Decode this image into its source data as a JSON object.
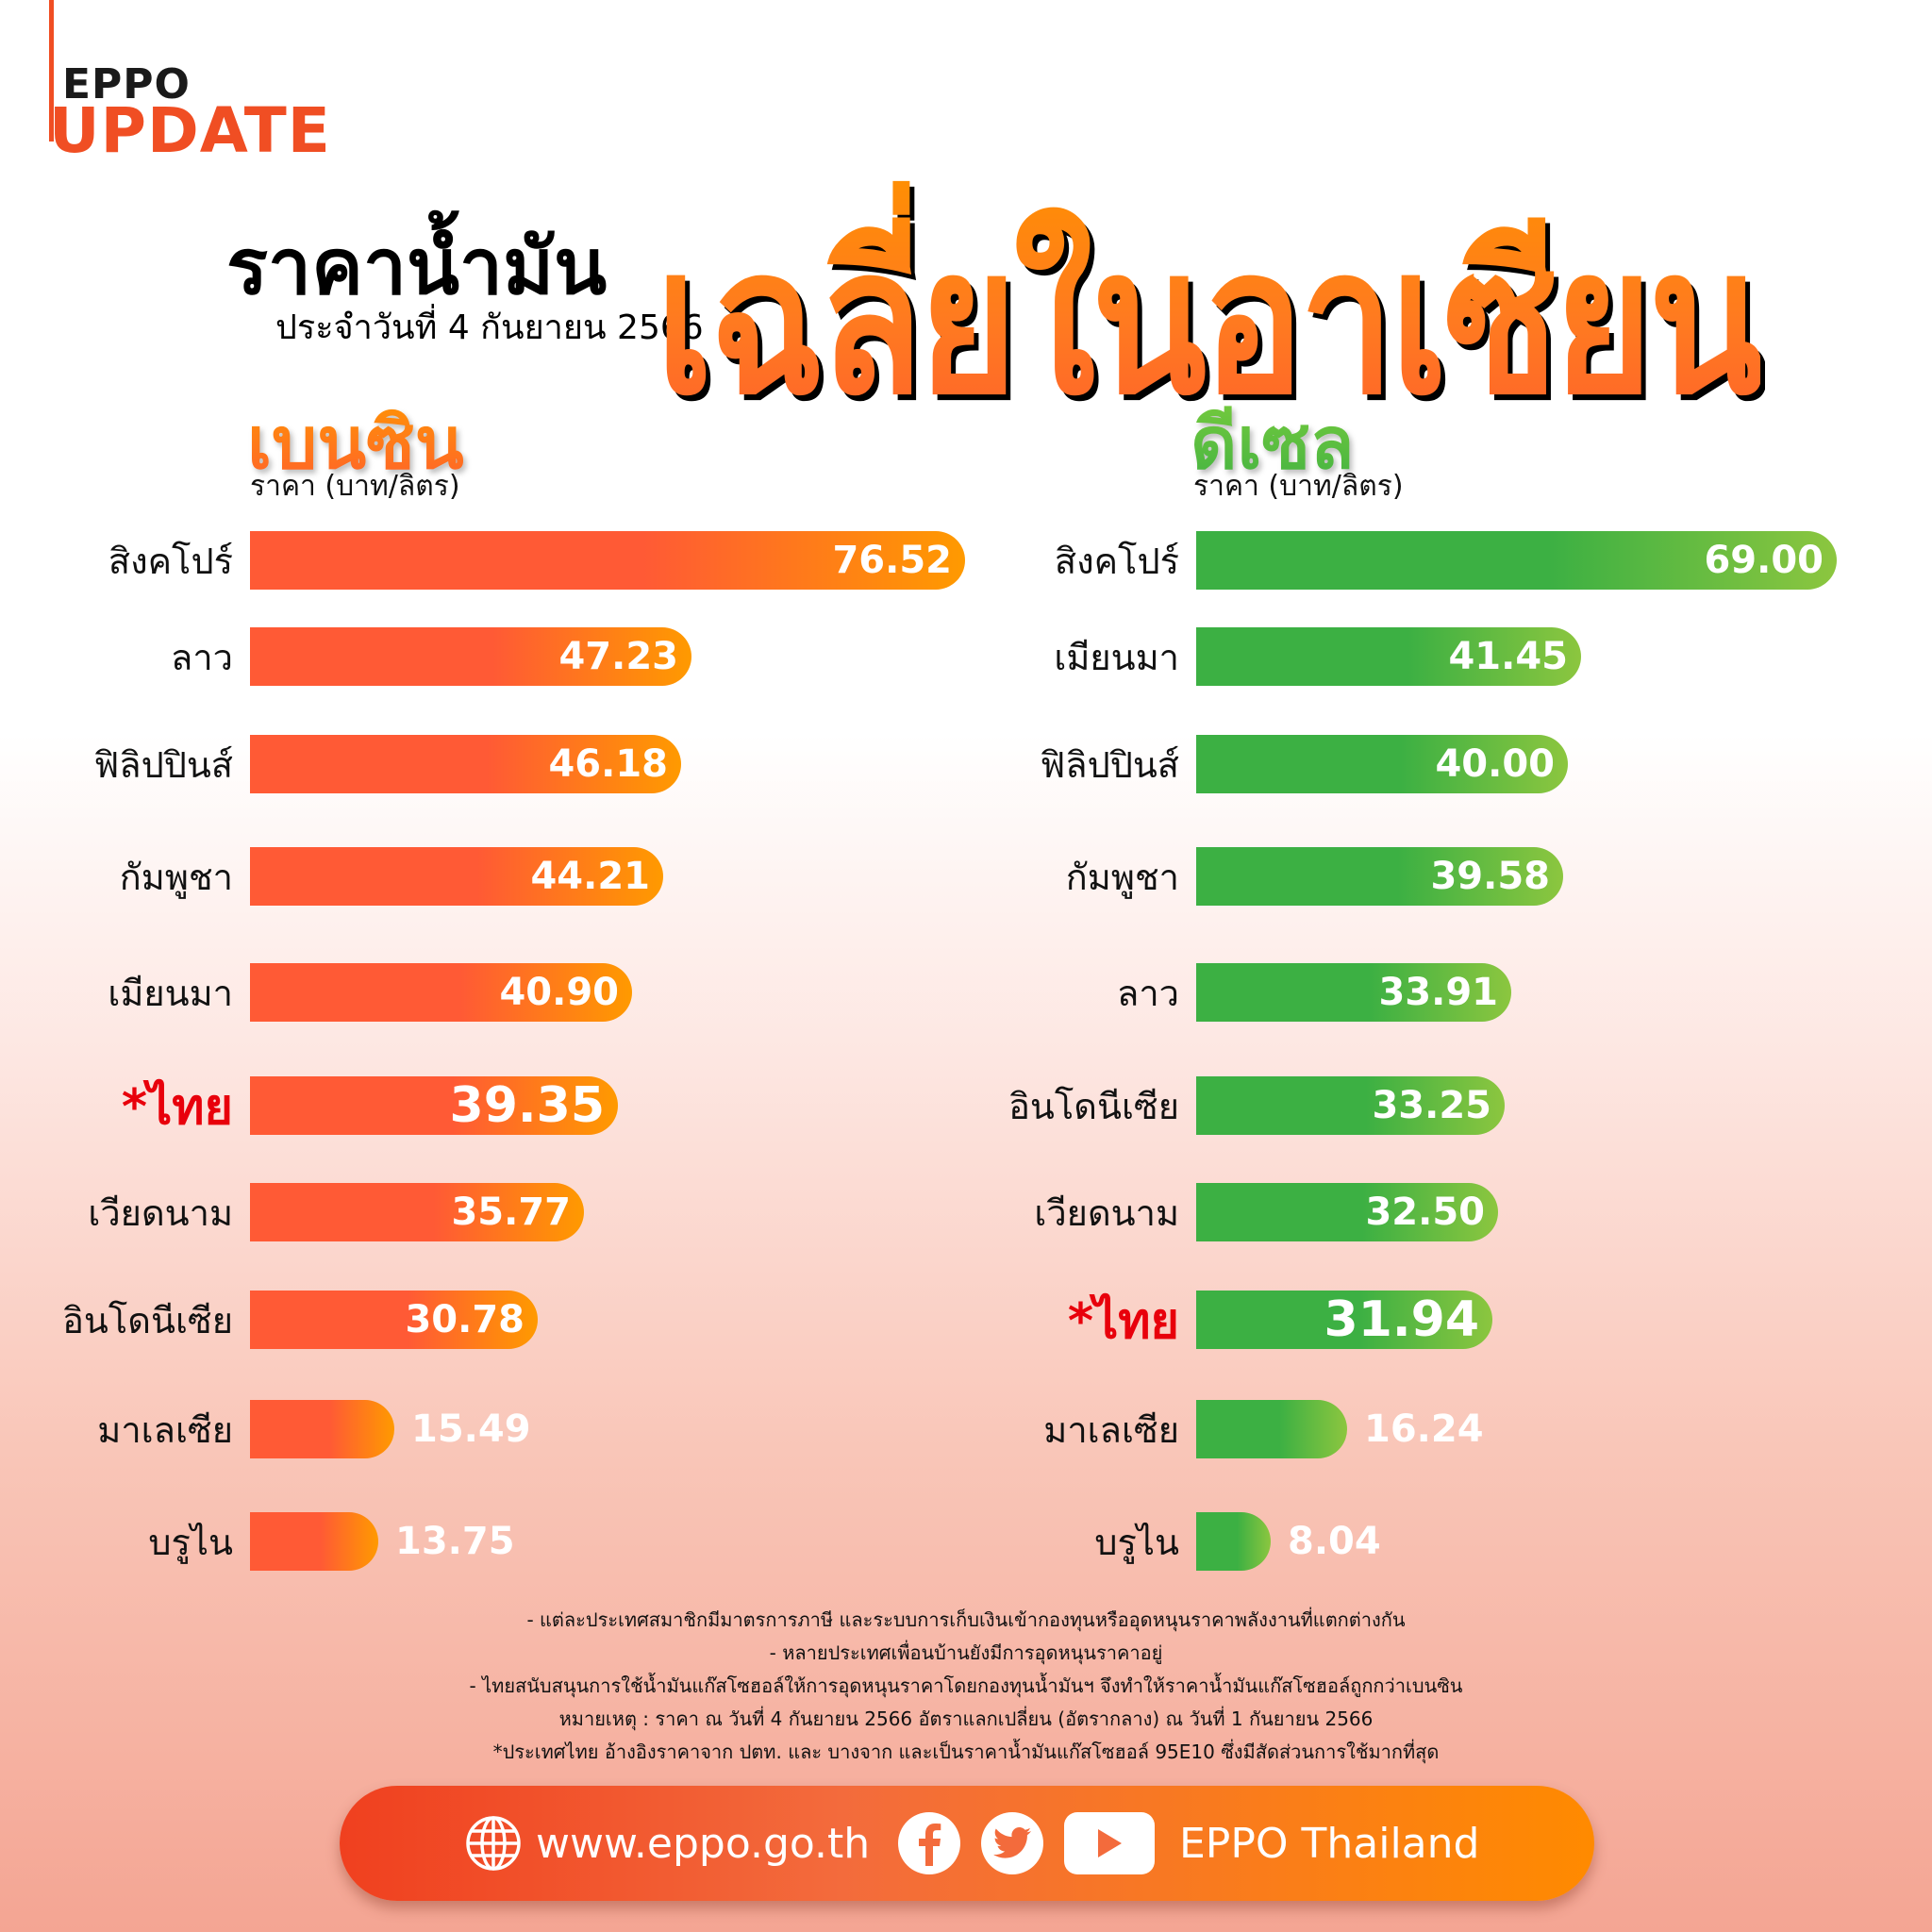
{
  "logo": {
    "line1": "EPPO",
    "line2": "UPDATE"
  },
  "title": {
    "main_black": "ราคาน้ำมัน",
    "date": "ประจำวันที่ 4 กันยายน 2566",
    "main_highlight": "เฉลี่ยในอาเซียน"
  },
  "benzin": {
    "heading": "เบนซิน",
    "unit": "ราคา (บาท/ลิตร)",
    "rows": [
      {
        "country": "สิงคโปร์",
        "value": "76.52"
      },
      {
        "country": "ลาว",
        "value": "47.23"
      },
      {
        "country": "ฟิลิปปินส์",
        "value": "46.18"
      },
      {
        "country": "กัมพูชา",
        "value": "44.21"
      },
      {
        "country": "เมียนมา",
        "value": "40.90"
      },
      {
        "country": "*ไทย",
        "value": "39.35"
      },
      {
        "country": "เวียดนาม",
        "value": "35.77"
      },
      {
        "country": "อินโดนีเซีย",
        "value": "30.78"
      },
      {
        "country": "มาเลเซีย",
        "value": "15.49"
      },
      {
        "country": "บรูไน",
        "value": "13.75"
      }
    ]
  },
  "diesel": {
    "heading": "ดีเซล",
    "unit": "ราคา (บาท/ลิตร)",
    "rows": [
      {
        "country": "สิงคโปร์",
        "value": "69.00"
      },
      {
        "country": "เมียนมา",
        "value": "41.45"
      },
      {
        "country": "ฟิลิปปินส์",
        "value": "40.00"
      },
      {
        "country": "กัมพูชา",
        "value": "39.58"
      },
      {
        "country": "ลาว",
        "value": "33.91"
      },
      {
        "country": "อินโดนีเซีย",
        "value": "33.25"
      },
      {
        "country": "เวียดนาม",
        "value": "32.50"
      },
      {
        "country": "*ไทย",
        "value": "31.94"
      },
      {
        "country": "มาเลเซีย",
        "value": "16.24"
      },
      {
        "country": "บรูไน",
        "value": "8.04"
      }
    ]
  },
  "notes": [
    "- แต่ละประเทศสมาชิกมีมาตรการภาษี และระบบการเก็บเงินเข้ากองทุนหรืออุดหนุนราคาพลังงานที่แตกต่างกัน",
    "- หลายประเทศเพื่อนบ้านยังมีการอุดหนุนราคาอยู่",
    "- ไทยสนับสนุนการใช้น้ำมันแก๊สโซฮอล์ให้การอุดหนุนราคาโดยกองทุนน้ำมันฯ จึงทำให้ราคาน้ำมันแก๊สโซฮอล์ถูกกว่าเบนซิน",
    "หมายเหตุ :  ราคา ณ วันที่ 4 กันยายน 2566 อัตราแลกเปลี่ยน (อัตรากลาง) ณ วันที่ 1 กันยายน 2566",
    "*ประเทศไทย อ้างอิงราคาจาก ปตท. และ บางจาก และเป็นราคาน้ำมันแก๊สโซฮอล์ 95E10 ซึ่งมีสัดส่วนการใช้มากที่สุด"
  ],
  "footer": {
    "website": "www.eppo.go.th",
    "social_name": "EPPO Thailand",
    "icons": [
      "globe-icon",
      "facebook-icon",
      "twitter-icon",
      "youtube-icon"
    ]
  },
  "colors": {
    "benzin_start": "#ff5a35",
    "benzin_end": "#ff9a00",
    "diesel_start": "#3cb043",
    "diesel_end": "#8cc63f",
    "thai_highlight": "#e8000b",
    "brand": "#f04e23"
  },
  "chart_data": [
    {
      "type": "bar",
      "title": "เบนซิน",
      "ylabel": "ราคา (บาท/ลิตร)",
      "orientation": "horizontal",
      "categories": [
        "สิงคโปร์",
        "ลาว",
        "ฟิลิปปินส์",
        "กัมพูชา",
        "เมียนมา",
        "*ไทย",
        "เวียดนาม",
        "อินโดนีเซีย",
        "มาเลเซีย",
        "บรูไน"
      ],
      "values": [
        76.52,
        47.23,
        46.18,
        44.21,
        40.9,
        39.35,
        35.77,
        30.78,
        15.49,
        13.75
      ],
      "highlight": "*ไทย",
      "grid": false
    },
    {
      "type": "bar",
      "title": "ดีเซล",
      "ylabel": "ราคา (บาท/ลิตร)",
      "orientation": "horizontal",
      "categories": [
        "สิงคโปร์",
        "เมียนมา",
        "ฟิลิปปินส์",
        "กัมพูชา",
        "ลาว",
        "อินโดนีเซีย",
        "เวียดนาม",
        "*ไทย",
        "มาเลเซีย",
        "บรูไน"
      ],
      "values": [
        69.0,
        41.45,
        40.0,
        39.58,
        33.91,
        33.25,
        32.5,
        31.94,
        16.24,
        8.04
      ],
      "highlight": "*ไทย",
      "grid": false
    }
  ]
}
